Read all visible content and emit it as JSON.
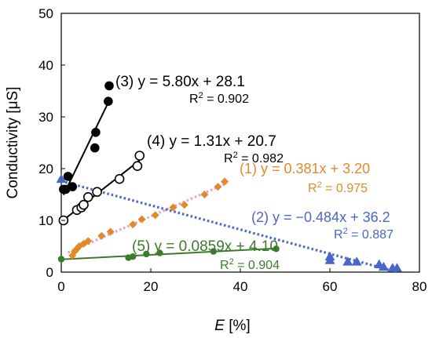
{
  "chart_data": {
    "type": "scatter",
    "xlabel_italic": "E",
    "xlabel_rest": " [%]",
    "ylabel": "Conductivity  [μS]",
    "xlim": [
      0,
      80
    ],
    "ylim": [
      0,
      50
    ],
    "xticks": [
      0,
      20,
      40,
      60,
      80
    ],
    "yticks": [
      0,
      10,
      20,
      30,
      40,
      50
    ],
    "grid": false,
    "series": [
      {
        "id": "s1",
        "marker": "diamond",
        "color": "#e08a2a",
        "line_style": "dotted",
        "line_color": "#e8a0c8",
        "points": [
          [
            2.5,
            3.2
          ],
          [
            3.0,
            4.0
          ],
          [
            3.5,
            4.5
          ],
          [
            4.0,
            5.0
          ],
          [
            5.0,
            5.5
          ],
          [
            6.0,
            6.0
          ],
          [
            9.0,
            7.0
          ],
          [
            11.0,
            7.8
          ],
          [
            16.0,
            9.2
          ],
          [
            18.0,
            10.2
          ],
          [
            21.0,
            11.0
          ],
          [
            25.0,
            12.5
          ],
          [
            27.5,
            13.0
          ],
          [
            32.0,
            15.0
          ],
          [
            35.0,
            16.5
          ],
          [
            36.5,
            17.5
          ]
        ],
        "fit": {
          "slope": 0.381,
          "intercept": 3.2,
          "x_range": [
            1.5,
            37.0
          ]
        },
        "equation": "(1) y = 0.381x + 3.20",
        "r2_prefix": "R",
        "r2_sup": "2",
        "r2_value": " = 0.975"
      },
      {
        "id": "s2",
        "marker": "triangle",
        "color": "#4a66c8",
        "line_style": "dotted",
        "line_color": "#4a66c8",
        "points": [
          [
            0.0,
            18.0
          ],
          [
            60.0,
            3.0
          ],
          [
            60.0,
            2.3
          ],
          [
            64.0,
            2.0
          ],
          [
            66.0,
            2.0
          ],
          [
            71.0,
            1.5
          ],
          [
            72.0,
            1.0
          ],
          [
            74.0,
            0.8
          ],
          [
            75.0,
            0.8
          ]
        ],
        "fit": {
          "slope": -0.484,
          "intercept": 36.2,
          "x_range": [
            0.0,
            75.0
          ]
        },
        "equation": "(2) y = −0.484x + 36.2",
        "r2_prefix": "R",
        "r2_sup": "2",
        "r2_value": " = 0.887"
      },
      {
        "id": "s3",
        "marker": "circle-filled",
        "color": "#000000",
        "line_style": "solid",
        "line_color": "#000000",
        "points": [
          [
            0.5,
            16.0
          ],
          [
            1.0,
            16.0
          ],
          [
            1.5,
            18.5
          ],
          [
            2.5,
            16.5
          ],
          [
            7.5,
            24.0
          ],
          [
            7.7,
            27.0
          ],
          [
            10.5,
            33.0
          ],
          [
            10.7,
            36.0
          ]
        ],
        "fit": {
          "slope": 5.8,
          "intercept": 28.1,
          "x_range": [
            0.5,
            10.8
          ]
        },
        "equation": "(3) y = 5.80x + 28.1",
        "r2_prefix": "R",
        "r2_sup": "2",
        "r2_value": " = 0.902"
      },
      {
        "id": "s4",
        "marker": "circle-open",
        "color": "#000000",
        "line_style": "solid",
        "line_color": "#000000",
        "points": [
          [
            0.5,
            10.0
          ],
          [
            3.5,
            12.0
          ],
          [
            4.5,
            12.5
          ],
          [
            5.0,
            13.0
          ],
          [
            6.0,
            14.5
          ],
          [
            8.0,
            15.5
          ],
          [
            13.0,
            18.0
          ],
          [
            17.0,
            20.5
          ],
          [
            17.5,
            22.5
          ]
        ],
        "fit": {
          "slope": 1.31,
          "intercept": 20.7,
          "x_range": [
            0.5,
            17.5
          ]
        },
        "equation": "(4) y = 1.31x + 20.7",
        "r2_prefix": "R",
        "r2_sup": "2",
        "r2_value": " = 0.982"
      },
      {
        "id": "s5",
        "marker": "circle-green",
        "color": "#3e7a2c",
        "line_style": "solid",
        "line_color": "#3e7a2c",
        "points": [
          [
            0.0,
            2.5
          ],
          [
            15.0,
            2.8
          ],
          [
            16.0,
            3.0
          ],
          [
            19.0,
            3.5
          ],
          [
            22.0,
            3.7
          ],
          [
            34.0,
            4.0
          ],
          [
            48.0,
            4.5
          ]
        ],
        "fit": {
          "slope": 0.0859,
          "intercept": 4.1,
          "x_range": [
            0.0,
            48.0
          ]
        },
        "equation": "(5) y = 0.0859x + 4.10",
        "r2_prefix": "R",
        "r2_sup": "2",
        "r2_value": " = 0.904"
      }
    ]
  }
}
